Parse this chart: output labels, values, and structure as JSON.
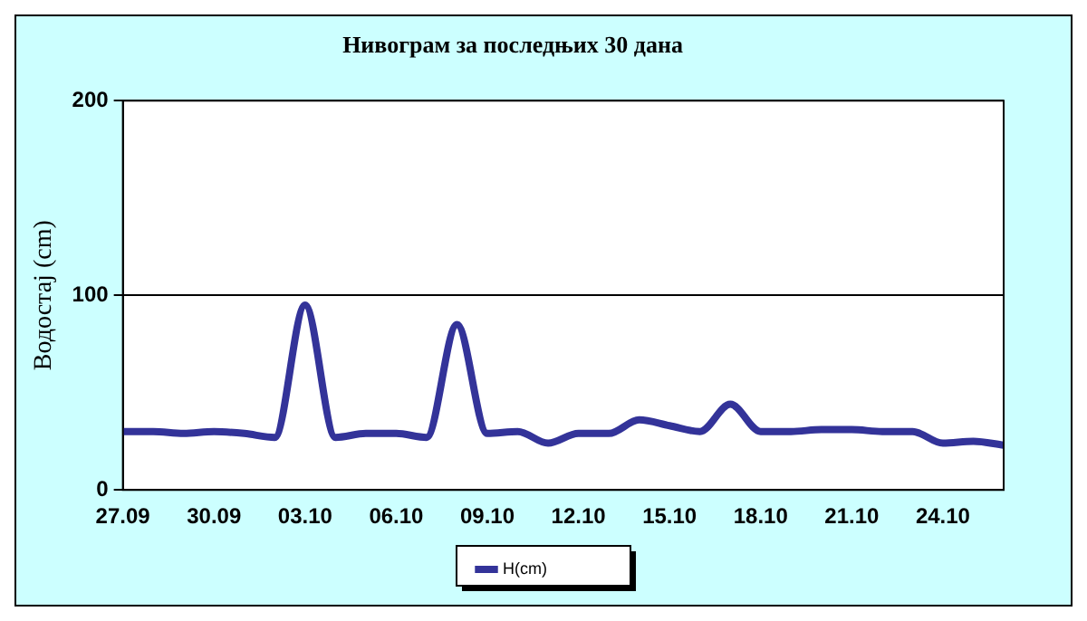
{
  "chart_data": {
    "type": "line",
    "title": "Нивограм за последњих 30 дана",
    "ylabel": "Водостај (cm)",
    "categories": [
      "27.09",
      null,
      null,
      "30.09",
      null,
      null,
      "03.10",
      null,
      null,
      "06.10",
      null,
      null,
      "09.10",
      null,
      null,
      "12.10",
      null,
      null,
      "15.10",
      null,
      null,
      "18.10",
      null,
      null,
      "21.10",
      null,
      null,
      "24.10",
      null,
      null
    ],
    "series": [
      {
        "name": "H(cm)",
        "color": "#333399",
        "values": [
          30,
          30,
          29,
          30,
          29,
          27,
          95,
          27,
          29,
          29,
          27,
          85,
          29,
          30,
          24,
          29,
          29,
          36,
          33,
          30,
          44,
          30,
          30,
          31,
          31,
          30,
          30,
          24,
          25,
          23
        ]
      }
    ],
    "ylim": [
      0,
      200
    ],
    "yticks": [
      0,
      100,
      200
    ],
    "grid": "y",
    "legend": "bottom",
    "marker": "none",
    "line_style": "solid"
  }
}
